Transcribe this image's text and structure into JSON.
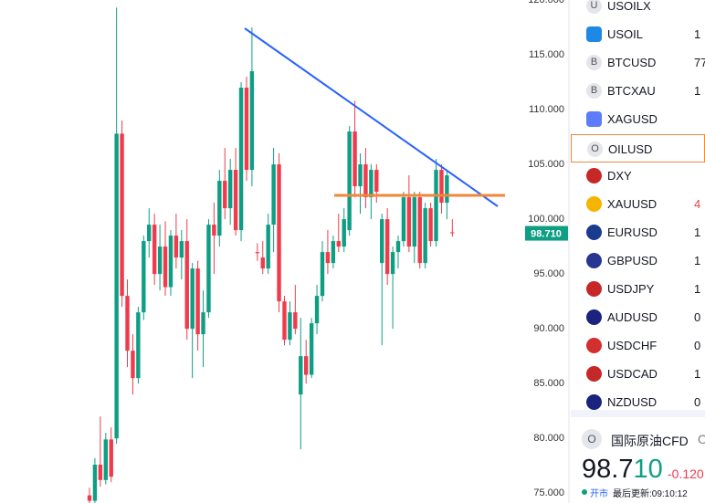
{
  "chart_data": {
    "type": "candlestick",
    "ylim": [
      74.1,
      120
    ],
    "yticks": [
      {
        "value": 120,
        "label": "120.000"
      },
      {
        "value": 115,
        "label": "115.000"
      },
      {
        "value": 110,
        "label": "110.000"
      },
      {
        "value": 105,
        "label": "105.000"
      },
      {
        "value": 100,
        "label": "100.000"
      },
      {
        "value": 95,
        "label": "95.000"
      },
      {
        "value": 90,
        "label": "90.000"
      },
      {
        "value": 85,
        "label": "85.000"
      },
      {
        "value": 80,
        "label": "80.000"
      },
      {
        "value": 75,
        "label": "75.000"
      }
    ],
    "grid": false,
    "up_color": "#0e9e83",
    "down_color": "#ef3b4c",
    "open": [
      74.8,
      74.3,
      77.6,
      76.2,
      79.9,
      80.0,
      107.8,
      93.0,
      88.0,
      85.5,
      91.5,
      98.0,
      99.5,
      95.0,
      97.5,
      93.8,
      98.5,
      96.5,
      98.0,
      90.0,
      95.5,
      89.5,
      91.5,
      99.5,
      98.5,
      103.5,
      101.0,
      104.5,
      99.0,
      112.0,
      104.5,
      97.0,
      96.5,
      95.5,
      99.5,
      105.0,
      92.5,
      89.0,
      91.5,
      84.0,
      87.5,
      85.8,
      90.5,
      93.0,
      97.0,
      96.0,
      98.0,
      97.5,
      99.0,
      108.0,
      103.0,
      105.0,
      102.0,
      104.5,
      96.0,
      100.0,
      95.0,
      97.0,
      98.0,
      102.0,
      97.5,
      102.0,
      96.0,
      101.0,
      98.0,
      104.5,
      101.5,
      98.8
    ],
    "high": [
      75.5,
      78.2,
      82.0,
      80.5,
      81.0,
      119.3,
      109.0,
      94.5,
      89.5,
      92.0,
      98.5,
      101.0,
      100.5,
      99.5,
      99.8,
      99.0,
      100.5,
      99.0,
      100.0,
      96.0,
      96.2,
      93.5,
      100.0,
      101.5,
      104.5,
      106.5,
      105.5,
      106.5,
      112.5,
      113.0,
      117.5,
      97.8,
      98.0,
      100.5,
      106.5,
      106.0,
      93.0,
      92.5,
      94.0,
      91.0,
      89.0,
      91.0,
      94.0,
      98.0,
      99.0,
      98.5,
      100.5,
      101.0,
      108.5,
      110.8,
      106.0,
      106.5,
      105.0,
      105.0,
      100.5,
      101.0,
      97.5,
      98.5,
      102.5,
      104.0,
      102.5,
      102.5,
      101.5,
      101.5,
      105.5,
      105.0,
      104.5,
      100.0
    ],
    "low": [
      74.1,
      74.0,
      75.6,
      75.8,
      76.0,
      79.5,
      92.0,
      86.5,
      84.0,
      85.0,
      90.8,
      96.5,
      94.0,
      93.5,
      93.0,
      93.0,
      95.5,
      94.5,
      89.0,
      85.5,
      88.0,
      86.5,
      91.0,
      95.0,
      97.5,
      100.0,
      99.5,
      98.5,
      98.0,
      103.5,
      103.0,
      96.2,
      95.0,
      95.0,
      97.0,
      91.5,
      88.5,
      88.5,
      89.5,
      79.0,
      85.0,
      85.5,
      89.5,
      92.5,
      95.0,
      95.5,
      97.0,
      97.0,
      98.5,
      102.0,
      100.5,
      101.0,
      100.0,
      101.5,
      88.5,
      94.0,
      90.0,
      95.5,
      97.5,
      97.0,
      96.0,
      95.5,
      95.5,
      97.5,
      97.5,
      100.5,
      100.0,
      98.4
    ],
    "close": [
      74.3,
      77.6,
      76.2,
      79.9,
      76.5,
      107.8,
      93.0,
      88.0,
      85.5,
      91.5,
      98.0,
      99.5,
      95.0,
      97.5,
      93.8,
      98.5,
      96.5,
      98.0,
      90.0,
      95.5,
      89.5,
      91.5,
      99.5,
      98.5,
      103.5,
      101.0,
      104.5,
      99.0,
      112.0,
      104.5,
      113.5,
      96.9,
      95.5,
      99.5,
      105.0,
      92.5,
      89.0,
      91.5,
      90.0,
      87.5,
      85.8,
      90.5,
      93.0,
      97.0,
      96.0,
      98.0,
      97.5,
      100.0,
      108.0,
      103.0,
      105.0,
      102.0,
      104.5,
      102.5,
      100.0,
      95.0,
      97.0,
      98.0,
      102.0,
      97.5,
      102.0,
      96.0,
      101.0,
      98.0,
      104.5,
      101.5,
      104.0,
      98.71
    ],
    "last_price": {
      "value": 98.71,
      "label": "98.710"
    }
  },
  "watchlist": [
    {
      "icon": "U",
      "symbol": "USOILX"
    },
    {
      "symbol": "USOIL",
      "value": "1"
    },
    {
      "icon": "B",
      "symbol": "BTCUSD",
      "value": "77"
    },
    {
      "icon": "B",
      "symbol": "BTCXAU",
      "value": "1"
    },
    {
      "symbol": "XAGUSD"
    },
    {
      "icon": "O",
      "symbol": "OILUSD"
    },
    {
      "symbol": "DXY"
    },
    {
      "symbol": "XAUUSD",
      "value": "4"
    },
    {
      "symbol": "EURUSD",
      "value": "1"
    },
    {
      "symbol": "GBPUSD",
      "value": "1"
    },
    {
      "symbol": "USDJPY",
      "value": "1"
    },
    {
      "symbol": "AUDUSD",
      "value": "0"
    },
    {
      "symbol": "USDCHF",
      "value": "0"
    },
    {
      "symbol": "USDCAD",
      "value": "1"
    },
    {
      "symbol": "NZDUSD",
      "value": "0"
    }
  ],
  "detail": {
    "icon": "O",
    "name": "国际原油CFD",
    "code": "O",
    "price_main": "98.7",
    "price_tail": "10",
    "change": "-0.120",
    "status": "开市",
    "updated": "最后更新:09:10:12"
  }
}
